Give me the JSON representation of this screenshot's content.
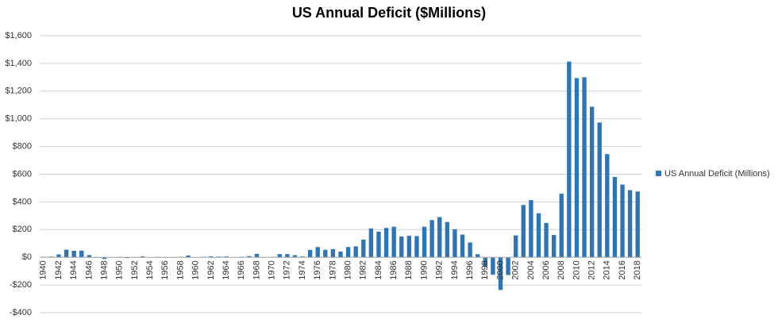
{
  "chart_data": {
    "type": "bar",
    "title": "US Annual Deficit ($Millions)",
    "categories": [
      "1940",
      null,
      "1942",
      null,
      "1944",
      null,
      "1946",
      null,
      "1948",
      null,
      "1950",
      null,
      "1952",
      null,
      "1954",
      null,
      "1956",
      null,
      "1958",
      null,
      "1960",
      null,
      "1962",
      null,
      "1964",
      null,
      "1966",
      null,
      "1968",
      null,
      "1970",
      null,
      "1972",
      null,
      "1974",
      null,
      "1976",
      null,
      "1978",
      null,
      "1980",
      null,
      "1982",
      null,
      "1984",
      null,
      "1986",
      null,
      "1988",
      null,
      "1990",
      null,
      "1992",
      null,
      "1994",
      null,
      "1996",
      null,
      "1998",
      null,
      "2000",
      null,
      "2002",
      null,
      "2004",
      null,
      "2006",
      null,
      "2008",
      null,
      "2010",
      null,
      "2012",
      null,
      "2014",
      null,
      "2016",
      null,
      "2018"
    ],
    "series": [
      {
        "name": "US Annual Deficit (Millions)",
        "color": "#2e75b6",
        "values": [
          3,
          5,
          21,
          55,
          47,
          48,
          16,
          -4,
          -12,
          1,
          3,
          -6,
          2,
          7,
          1,
          3,
          -4,
          -3,
          3,
          13,
          0,
          3,
          7,
          5,
          6,
          1,
          4,
          9,
          25,
          -3,
          3,
          23,
          23,
          15,
          6,
          53,
          74,
          54,
          59,
          41,
          74,
          79,
          128,
          208,
          185,
          212,
          221,
          150,
          155,
          153,
          221,
          269,
          290,
          255,
          203,
          164,
          107,
          22,
          -69,
          -126,
          -236,
          -128,
          158,
          378,
          413,
          318,
          248,
          161,
          459,
          1413,
          1294,
          1300,
          1087,
          973,
          745,
          580,
          525,
          485,
          475
        ]
      }
    ],
    "ylim": [
      -400,
      1600
    ],
    "yticks": [
      {
        "value": -400,
        "label": "-$400"
      },
      {
        "value": -200,
        "label": "-$200"
      },
      {
        "value": 0,
        "label": "$0"
      },
      {
        "value": 200,
        "label": "$200"
      },
      {
        "value": 400,
        "label": "$400"
      },
      {
        "value": 600,
        "label": "$600"
      },
      {
        "value": 800,
        "label": "$800"
      },
      {
        "value": 1000,
        "label": "$1,000"
      },
      {
        "value": 1200,
        "label": "$1,200"
      },
      {
        "value": 1400,
        "label": "$1,400"
      },
      {
        "value": 1600,
        "label": "$1,600"
      }
    ],
    "grid": true,
    "legend": "right"
  }
}
